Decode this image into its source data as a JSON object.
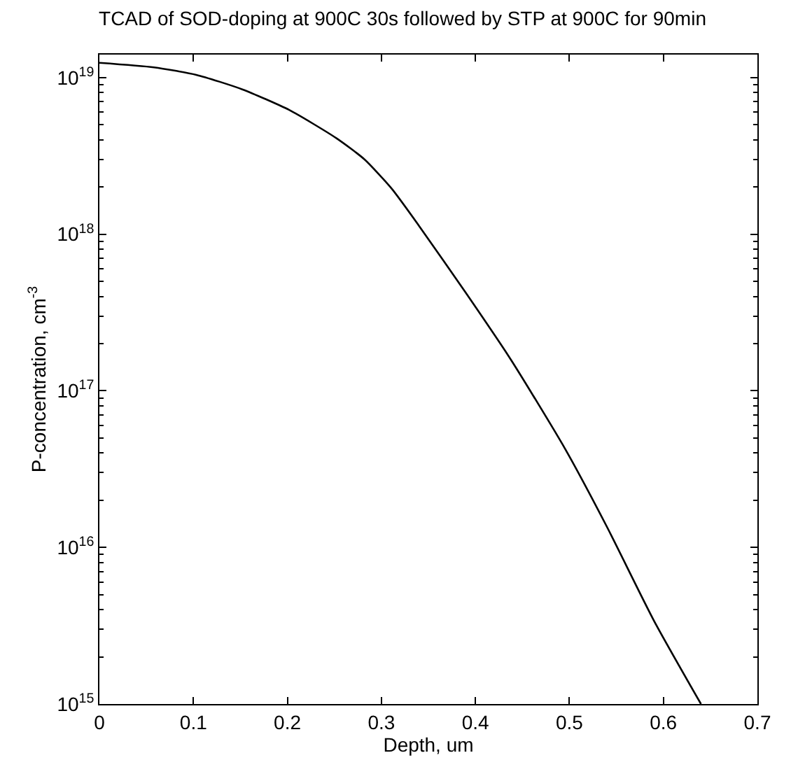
{
  "chart_data": {
    "type": "line",
    "title": "TCAD of SOD-doping at 900C 30s followed by STP at 900C for 90min",
    "xlabel": "Depth, um",
    "ylabel": "P-concentration, cm$^{-3}$",
    "x": [
      0,
      0.058,
      0.103,
      0.152,
      0.202,
      0.252,
      0.282,
      0.311,
      0.34,
      0.39,
      0.438,
      0.495,
      0.54,
      0.59,
      0.64
    ],
    "series": [
      {
        "color": "#000000",
        "values": [
          1.24e+19,
          1.16e+19,
          1.04e+19,
          8.4e+18,
          6.2e+18,
          4.1e+18,
          3e+18,
          1.95e+18,
          1.13e+18,
          4.2e+17,
          1.57e+17,
          4.3e+16,
          1.35e+16,
          3400000000000000.0,
          1000000000000000.0
        ]
      }
    ],
    "log": "y",
    "xlim": [
      0,
      0.7
    ],
    "xticks": [
      0,
      0.1,
      0.2,
      0.3,
      0.4,
      0.5,
      0.6,
      0.7
    ],
    "ylim": [
      1000000000000000.0,
      1.4e+19
    ],
    "yticks": [
      {
        "value": 1000000000000000.0,
        "label": "10$^{15}$"
      },
      {
        "value": 1e+16,
        "label": "10$^{16}$"
      },
      {
        "value": 1e+17,
        "label": "10$^{17}$"
      },
      {
        "value": 1e+18,
        "label": "10$^{18}$"
      },
      {
        "value": 1e+19,
        "label": "10$^{19}$"
      }
    ],
    "marker": "none",
    "line_style": "solid"
  }
}
